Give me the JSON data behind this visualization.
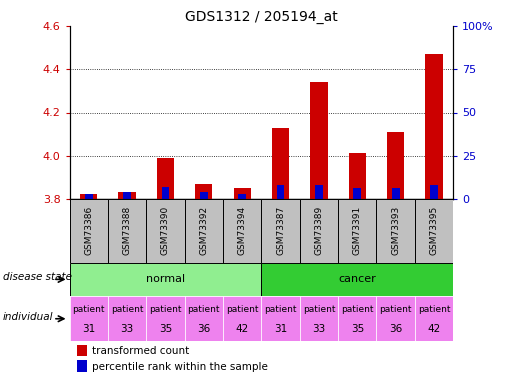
{
  "title": "GDS1312 / 205194_at",
  "samples": [
    "GSM73386",
    "GSM73388",
    "GSM73390",
    "GSM73392",
    "GSM73394",
    "GSM73387",
    "GSM73389",
    "GSM73391",
    "GSM73393",
    "GSM73395"
  ],
  "transformed_count": [
    3.82,
    3.83,
    3.99,
    3.87,
    3.85,
    4.13,
    4.34,
    4.01,
    4.11,
    4.47
  ],
  "percentile_rank_pct": [
    3,
    4,
    7,
    4,
    3,
    8,
    8,
    6,
    6,
    8
  ],
  "baseline": 3.8,
  "ylim_left": [
    3.8,
    4.6
  ],
  "ylim_right": [
    0,
    100
  ],
  "yticks_left": [
    3.8,
    4.0,
    4.2,
    4.4,
    4.6
  ],
  "yticks_right": [
    0,
    25,
    50,
    75,
    100
  ],
  "ytick_labels_right": [
    "0",
    "25",
    "50",
    "75",
    "100%"
  ],
  "individuals": [
    "patient\n31",
    "patient\n33",
    "patient\n35",
    "patient\n36",
    "patient\n42",
    "patient\n31",
    "patient\n33",
    "patient\n35",
    "patient\n36",
    "patient\n42"
  ],
  "normal_color": "#90EE90",
  "cancer_color": "#33CC33",
  "individual_color": "#EE82EE",
  "bar_color_red": "#CC0000",
  "bar_color_blue": "#0000CC",
  "sample_bg": "#C0C0C0",
  "left_axis_color": "#CC0000",
  "right_axis_color": "#0000CC",
  "bar_width": 0.45
}
